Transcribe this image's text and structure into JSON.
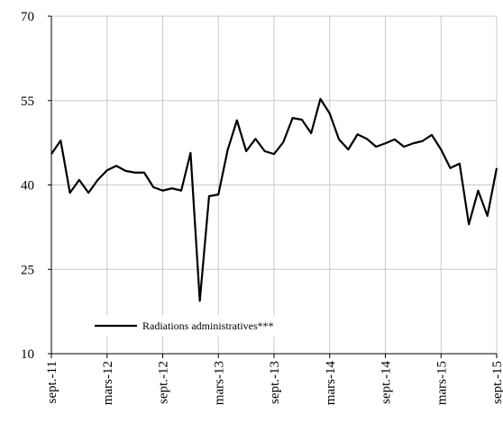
{
  "chart_data": {
    "type": "line",
    "categories": [
      "sept.-11",
      null,
      null,
      null,
      null,
      null,
      "mars-12",
      null,
      null,
      null,
      null,
      null,
      "sept.-12",
      null,
      null,
      null,
      null,
      null,
      "mars-13",
      null,
      null,
      null,
      null,
      null,
      "sept.-13",
      null,
      null,
      null,
      null,
      null,
      "mars-14",
      null,
      null,
      null,
      null,
      null,
      "sept.-14",
      null,
      null,
      null,
      null,
      null,
      "mars-15",
      null,
      null,
      null,
      null,
      null,
      "sept.-15"
    ],
    "series": [
      {
        "name": "Radiations administratives***",
        "color": "#000000",
        "values": [
          45.5,
          47.9,
          38.6,
          40.9,
          38.6,
          40.9,
          42.6,
          43.4,
          42.5,
          42.2,
          42.2,
          39.6,
          39,
          39.4,
          39,
          45.7,
          19.4,
          38,
          38.3,
          46.2,
          51.5,
          46,
          48.2,
          46,
          45.5,
          47.6,
          51.9,
          51.6,
          49.2,
          55.3,
          52.7,
          48.1,
          46.3,
          49,
          48.2,
          46.8,
          47.4,
          48.1,
          46.8,
          47.4,
          47.8,
          48.9,
          46.3,
          43,
          43.8,
          33,
          39,
          34.5,
          43
        ]
      }
    ],
    "ylim": [
      10,
      70
    ],
    "yticks": [
      10,
      25,
      40,
      55,
      70
    ],
    "grid": true,
    "legend": "bottom-left"
  }
}
